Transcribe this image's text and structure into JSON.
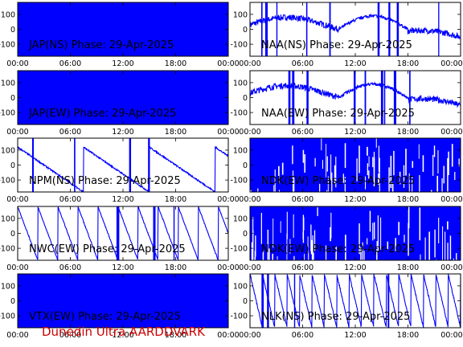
{
  "footer": "Dunedin Ultra AARDDVARK",
  "colors": {
    "signal": "#0000ff",
    "frame": "#000000",
    "footer": "#cc0000"
  },
  "chart_data": [
    {
      "type": "line",
      "title": "JAP(NS) Phase: 29-Apr-2025",
      "x_ticks": [
        "00:00",
        "06:00",
        "12:00",
        "18:00",
        "00:00"
      ],
      "y_ticks": [
        "100",
        "0",
        "-100"
      ],
      "ylim": [
        -180,
        180
      ],
      "pattern": "solid"
    },
    {
      "type": "line",
      "title": "NAA(NS) Phase: 29-Apr-2025",
      "x_ticks": [
        "00:00",
        "06:00",
        "12:00",
        "18:00",
        "00:00"
      ],
      "y_ticks": [
        "100",
        "0",
        "-100"
      ],
      "ylim": [
        -180,
        180
      ],
      "pattern": "drift"
    },
    {
      "type": "line",
      "title": "JAP(EW) Phase: 29-Apr-2025",
      "x_ticks": [
        "00:00",
        "06:00",
        "12:00",
        "18:00",
        "00:00"
      ],
      "y_ticks": [
        "100",
        "0",
        "-100"
      ],
      "ylim": [
        -180,
        180
      ],
      "pattern": "solid"
    },
    {
      "type": "line",
      "title": "NAA(EW) Phase: 29-Apr-2025",
      "x_ticks": [
        "00:00",
        "06:00",
        "12:00",
        "18:00",
        "00:00"
      ],
      "y_ticks": [
        "100",
        "0",
        "-100"
      ],
      "ylim": [
        -180,
        180
      ],
      "pattern": "drift"
    },
    {
      "type": "line",
      "title": "NPM(NS) Phase: 29-Apr-2025",
      "x_ticks": [
        "00:00",
        "06:00",
        "12:00",
        "18:00",
        "00:00"
      ],
      "y_ticks": [
        "100",
        "0",
        "-100"
      ],
      "ylim": [
        -180,
        180
      ],
      "pattern": "wrap"
    },
    {
      "type": "line",
      "title": "NDK(EW) Phase: 29-Apr-2025",
      "x_ticks": [
        "00:00",
        "06:00",
        "12:00",
        "18:00",
        "00:00"
      ],
      "y_ticks": [
        "100",
        "0",
        "-100"
      ],
      "ylim": [
        -180,
        180
      ],
      "pattern": "noise"
    },
    {
      "type": "line",
      "title": "NWC(EW) Phase: 29-Apr-2025",
      "x_ticks": [
        "00:00",
        "06:00",
        "12:00",
        "18:00",
        "00:00"
      ],
      "y_ticks": [
        "100",
        "0",
        "-100"
      ],
      "ylim": [
        -180,
        180
      ],
      "pattern": "sawtooth"
    },
    {
      "type": "line",
      "title": "NDK(EW) Phase: 29-Apr-2025",
      "x_ticks": [
        "00:00",
        "06:00",
        "12:00",
        "18:00",
        "00:00"
      ],
      "y_ticks": [
        "100",
        "0",
        "-100"
      ],
      "ylim": [
        -180,
        180
      ],
      "pattern": "noise"
    },
    {
      "type": "line",
      "title": "VTX(EW) Phase: 29-Apr-2025",
      "x_ticks": [
        "00:00",
        "06:00",
        "12:00",
        "18:00",
        "00:00"
      ],
      "y_ticks": [
        "100",
        "0",
        "-100"
      ],
      "ylim": [
        -180,
        180
      ],
      "pattern": "solid"
    },
    {
      "type": "line",
      "title": "NLK(NS) Phase: 29-Apr-2025",
      "x_ticks": [
        "00:00",
        "06:00",
        "12:00",
        "18:00",
        "00:00"
      ],
      "y_ticks": [
        "100",
        "0",
        "-100"
      ],
      "ylim": [
        -180,
        180
      ],
      "pattern": "sawtooth-fast"
    }
  ]
}
